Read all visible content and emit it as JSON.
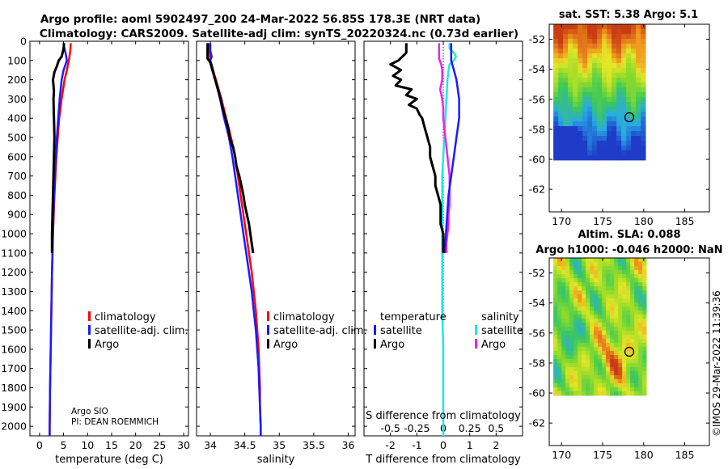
{
  "title": {
    "line1": "Argo profile: aoml 5902497_200 24-Mar-2022 56.85S 178.3E (NRT data)",
    "line2": "Climatology: CARS2009. Satellite-adj clim: synTS_20220324.nc (0.73d earlier)"
  },
  "colors": {
    "climatology": "#ff0000",
    "satellite": "#1a1aff",
    "argo": "#000000",
    "sal_satellite": "#22e6e6",
    "sal_argo": "#ee22ee"
  },
  "depth_axis": {
    "ylim": [
      0,
      2050
    ],
    "ticks": [
      "0",
      "100",
      "200",
      "300",
      "400",
      "500",
      "600",
      "700",
      "800",
      "900",
      "1000",
      "1100",
      "1200",
      "1300",
      "1400",
      "1500",
      "1600",
      "1700",
      "1800",
      "1900",
      "2000"
    ]
  },
  "chart_data": [
    {
      "type": "line",
      "panel": "temperature",
      "xlabel": "temperature (deg C)",
      "xlim": [
        -2,
        31
      ],
      "xticks": [
        "0",
        "5",
        "10",
        "15",
        "20",
        "25",
        "30"
      ],
      "xtick_values": [
        0,
        5,
        10,
        15,
        20,
        25,
        30
      ],
      "legend": [
        "climatology",
        "satellite-adj. clim.",
        "Argo"
      ],
      "annotation": [
        "Argo SIO",
        "PI: DEAN ROEMMICH"
      ],
      "series": [
        {
          "name": "climatology",
          "depth": [
            10,
            50,
            100,
            150,
            200,
            300,
            400,
            500,
            600,
            700,
            800,
            1000,
            1200,
            1500,
            1800,
            2000,
            2050
          ],
          "values": [
            6.5,
            6.4,
            6.1,
            5.7,
            5.2,
            4.6,
            4.1,
            3.8,
            3.5,
            3.3,
            3.1,
            2.8,
            2.6,
            2.4,
            2.2,
            2.1,
            2.1
          ]
        },
        {
          "name": "satellite-adj. clim.",
          "depth": [
            10,
            30,
            60,
            100,
            150,
            200,
            300,
            400,
            500,
            600,
            700,
            800,
            1000,
            1200,
            1500,
            1800,
            2000,
            2050
          ],
          "values": [
            5.0,
            5.1,
            5.4,
            5.7,
            5.0,
            4.6,
            4.2,
            3.9,
            3.6,
            3.4,
            3.2,
            3.0,
            2.8,
            2.6,
            2.4,
            2.2,
            2.1,
            2.1
          ]
        },
        {
          "name": "Argo",
          "depth": [
            10,
            40,
            80,
            100,
            130,
            160,
            200,
            260,
            300,
            400,
            500,
            600,
            700,
            800,
            900,
            1000,
            1100
          ],
          "values": [
            5.1,
            5.0,
            4.6,
            4.0,
            3.6,
            3.1,
            2.8,
            3.0,
            2.9,
            3.0,
            3.1,
            3.0,
            2.9,
            2.8,
            2.7,
            2.6,
            2.6
          ]
        }
      ]
    },
    {
      "type": "line",
      "panel": "salinity",
      "xlabel": "salinity",
      "xlim": [
        33.8,
        36.1
      ],
      "xticks": [
        "34",
        "34.5",
        "35",
        "35.5",
        "36"
      ],
      "xtick_values": [
        34,
        34.5,
        35,
        35.5,
        36
      ],
      "legend": [
        "climatology",
        "satellite-adj. clim.",
        "Argo"
      ],
      "series": [
        {
          "name": "climatology",
          "depth": [
            10,
            50,
            100,
            150,
            200,
            300,
            400,
            500,
            600,
            700,
            800,
            900,
            1000,
            1100,
            1200,
            1300,
            1400,
            1500,
            1600,
            1700,
            1800,
            1900,
            2000,
            2050
          ],
          "values": [
            33.99,
            33.99,
            34.0,
            34.04,
            34.08,
            34.16,
            34.23,
            34.3,
            34.36,
            34.4,
            34.44,
            34.48,
            34.52,
            34.56,
            34.6,
            34.63,
            34.66,
            34.68,
            34.7,
            34.71,
            34.72,
            34.72,
            34.73,
            34.73
          ]
        },
        {
          "name": "satellite-adj. clim.",
          "depth": [
            10,
            50,
            80,
            100,
            150,
            200,
            300,
            400,
            500,
            600,
            700,
            800,
            900,
            1000,
            1100,
            1200,
            1300,
            1400,
            1500,
            1600,
            1700,
            1800,
            1900,
            2000,
            2050
          ],
          "values": [
            34.0,
            34.0,
            34.02,
            34.0,
            34.04,
            34.07,
            34.14,
            34.2,
            34.27,
            34.32,
            34.36,
            34.4,
            34.44,
            34.48,
            34.52,
            34.56,
            34.6,
            34.63,
            34.66,
            34.68,
            34.7,
            34.71,
            34.72,
            34.73,
            34.73
          ]
        },
        {
          "name": "Argo",
          "depth": [
            10,
            50,
            90,
            110,
            150,
            200,
            260,
            300,
            350,
            400,
            450,
            500,
            550,
            600,
            650,
            700,
            750,
            800,
            850,
            900,
            950,
            1000,
            1050,
            1100
          ],
          "values": [
            33.96,
            33.96,
            33.96,
            34.0,
            34.03,
            34.07,
            34.12,
            34.15,
            34.18,
            34.22,
            34.26,
            34.28,
            34.33,
            34.36,
            34.38,
            34.42,
            34.45,
            34.48,
            34.5,
            34.53,
            34.56,
            34.58,
            34.6,
            34.62
          ]
        }
      ]
    },
    {
      "type": "line",
      "panel": "differences",
      "xlabel": "T difference from climatology",
      "xlim": [
        -3,
        3
      ],
      "xticks": [
        "-2",
        "-1",
        "0",
        "1",
        "2"
      ],
      "xtick_values": [
        -2,
        -1,
        0,
        1,
        2
      ],
      "top_xlabel": "S difference from climatology",
      "top_xticks": [
        "-0.5",
        "-0.25",
        "0",
        "0.25",
        "0.5"
      ],
      "top_xtick_values": [
        -0.5,
        -0.25,
        0,
        0.25,
        0.5
      ],
      "legend_temperature": [
        "temperature",
        "satellite",
        "Argo"
      ],
      "legend_salinity": [
        "salinity",
        "satellite",
        "Argo"
      ],
      "series": [
        {
          "name": "T satellite",
          "depth": [
            10,
            40,
            70,
            100,
            150,
            200,
            300,
            400,
            500,
            600,
            700,
            800,
            900,
            1000,
            1100
          ],
          "values": [
            0.3,
            0.3,
            0.3,
            0.3,
            0.4,
            0.5,
            0.6,
            0.6,
            0.5,
            0.4,
            0.3,
            0.2,
            0.15,
            0.1,
            0.05
          ]
        },
        {
          "name": "T Argo",
          "depth": [
            10,
            30,
            60,
            100,
            120,
            150,
            180,
            200,
            230,
            250,
            280,
            300,
            330,
            350,
            380,
            400,
            450,
            500,
            550,
            600,
            650,
            700,
            750,
            800,
            850,
            900,
            950,
            1000,
            1050,
            1100
          ],
          "values": [
            -1.4,
            -1.4,
            -1.4,
            -1.7,
            -2.0,
            -1.6,
            -1.9,
            -1.6,
            -1.8,
            -1.2,
            -1.4,
            -1.0,
            -1.3,
            -1.0,
            -0.9,
            -0.8,
            -0.7,
            -0.6,
            -0.5,
            -0.5,
            -0.4,
            -0.3,
            -0.3,
            -0.2,
            -0.1,
            -0.1,
            -0.1,
            0.0,
            0.0,
            0.0
          ]
        },
        {
          "name": "S satellite",
          "depth": [
            10,
            40,
            60,
            80,
            100,
            120,
            150,
            200,
            300,
            400,
            500,
            600,
            700,
            800,
            1000,
            1200,
            1400,
            1600,
            1800,
            2000,
            2050
          ],
          "values": [
            0.06,
            0.06,
            0.1,
            0.12,
            0.1,
            0.06,
            0.05,
            0.04,
            0.03,
            0.02,
            0.01,
            0.0,
            -0.01,
            -0.01,
            -0.01,
            -0.01,
            -0.01,
            0.0,
            0.0,
            0.0,
            0.0
          ]
        },
        {
          "name": "S Argo",
          "depth": [
            10,
            50,
            90,
            120,
            150,
            200,
            250,
            300,
            350,
            400,
            450,
            500,
            550,
            600,
            650,
            700,
            750,
            800,
            850,
            900,
            950,
            1000,
            1050,
            1100
          ],
          "values": [
            -0.04,
            -0.04,
            -0.04,
            -0.02,
            -0.01,
            -0.01,
            -0.03,
            -0.01,
            0.0,
            0.0,
            0.01,
            0.02,
            0.03,
            0.04,
            0.05,
            0.06,
            0.06,
            0.06,
            0.06,
            0.05,
            0.05,
            0.04,
            0.03,
            0.03
          ]
        }
      ]
    },
    {
      "type": "heatmap",
      "panel": "sst_map",
      "title": "sat. SST: 5.38 Argo: 5.1",
      "xticks": [
        "170",
        "175",
        "180",
        "185"
      ],
      "xtick_values": [
        170,
        175,
        180,
        185
      ],
      "yticks": [
        "-52",
        "-54",
        "-56",
        "-58",
        "-60",
        "-62"
      ],
      "ytick_values": [
        -52,
        -54,
        -56,
        -58,
        -60,
        -62
      ],
      "xlim": [
        168.5,
        188
      ],
      "ylim": [
        -63.5,
        -51
      ],
      "data_extent": {
        "lon": [
          169,
          180
        ],
        "lat": [
          -60,
          -51
        ]
      },
      "float_location": [
        178.3,
        -56.85
      ]
    },
    {
      "type": "heatmap",
      "panel": "sla_map",
      "title": "Altim. SLA: 0.088",
      "subtitle": "Argo h1000: -0.046 h2000: NaN",
      "xticks": [
        "170",
        "175",
        "180",
        "185"
      ],
      "xtick_values": [
        170,
        175,
        180,
        185
      ],
      "yticks": [
        "-52",
        "-54",
        "-56",
        "-58",
        "-60",
        "-62"
      ],
      "ytick_values": [
        -52,
        -54,
        -56,
        -58,
        -60,
        -62
      ],
      "xlim": [
        168.5,
        188
      ],
      "ylim": [
        -63.5,
        -51
      ],
      "data_extent": {
        "lon": [
          169,
          180
        ],
        "lat": [
          -60,
          -51
        ]
      },
      "float_location": [
        178.3,
        -56.85
      ]
    }
  ],
  "watermark": "©IMOS 29-Mar-2022 11:39:36"
}
